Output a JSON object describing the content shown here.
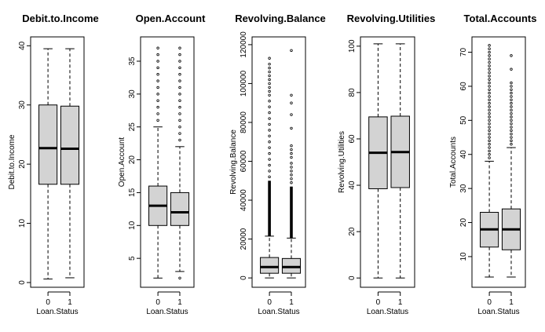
{
  "chart_data": [
    {
      "type": "box",
      "title": "Debit.to.Income",
      "xlabel": "Loan.Status",
      "ylabel": "Debit.to.Income",
      "categories": [
        "0",
        "1"
      ],
      "yticks": [
        0,
        10,
        20,
        30,
        40
      ],
      "ylim": [
        -0.8,
        41.5
      ],
      "boxes": [
        {
          "group": "0",
          "whisker_low": 0.6,
          "q1": 16.6,
          "median": 22.7,
          "q3": 30.0,
          "whisker_high": 39.5,
          "outliers": []
        },
        {
          "group": "1",
          "whisker_low": 0.8,
          "q1": 16.6,
          "median": 22.6,
          "q3": 29.8,
          "whisker_high": 39.5,
          "outliers": []
        }
      ]
    },
    {
      "type": "box",
      "title": "Open.Account",
      "xlabel": "Loan.Status",
      "ylabel": "Open.Account",
      "categories": [
        "0",
        "1"
      ],
      "yticks": [
        5,
        10,
        15,
        20,
        25,
        30,
        35
      ],
      "ylim": [
        0.6,
        38.7
      ],
      "boxes": [
        {
          "group": "0",
          "whisker_low": 2,
          "q1": 10,
          "median": 13,
          "q3": 16,
          "whisker_high": 25,
          "outliers": [
            26,
            27,
            28,
            29,
            30,
            31,
            32,
            33,
            34,
            35,
            36,
            37
          ]
        },
        {
          "group": "1",
          "whisker_low": 3,
          "q1": 10,
          "median": 12,
          "q3": 15,
          "whisker_high": 22,
          "outliers": [
            2,
            23,
            24,
            25,
            26,
            27,
            28,
            29,
            30,
            31,
            32,
            33,
            34,
            35,
            36,
            37
          ]
        }
      ]
    },
    {
      "type": "box",
      "title": "Revolving.Balance",
      "xlabel": "Loan.Status",
      "ylabel": "Revolving.Balance",
      "categories": [
        "0",
        "1"
      ],
      "yticks": [
        0,
        20000,
        40000,
        60000,
        80000,
        100000,
        120000
      ],
      "ylim": [
        -4800,
        124000
      ],
      "boxes": [
        {
          "group": "0",
          "whisker_low": 0,
          "q1": 2400,
          "median": 5600,
          "q3": 10500,
          "whisker_high": 21500,
          "outliers_dense": [
            21500,
            50000
          ],
          "outliers": [
            52000,
            55000,
            58000,
            61000,
            64000,
            67000,
            70000,
            73000,
            76000,
            79000,
            82000,
            85000,
            88000,
            91000,
            94000,
            96000,
            98000,
            100000,
            102000,
            104000,
            106000,
            108000,
            110000,
            113000
          ]
        },
        {
          "group": "1",
          "whisker_low": 0,
          "q1": 2400,
          "median": 5600,
          "q3": 10000,
          "whisker_high": 20500,
          "outliers_dense": [
            20500,
            47000
          ],
          "outliers": [
            49000,
            51000,
            53000,
            55000,
            57000,
            59000,
            62000,
            64000,
            66000,
            68000,
            77000,
            84000,
            90000,
            94000,
            117000
          ]
        }
      ]
    },
    {
      "type": "box",
      "title": "Revolving.Utilities",
      "xlabel": "Loan.Status",
      "ylabel": "Revolving.Utilities",
      "categories": [
        "0",
        "1"
      ],
      "yticks": [
        0,
        20,
        40,
        60,
        80,
        100
      ],
      "ylim": [
        -4,
        104
      ],
      "boxes": [
        {
          "group": "0",
          "whisker_low": 0,
          "q1": 38.5,
          "median": 54,
          "q3": 69.5,
          "whisker_high": 101,
          "outliers": []
        },
        {
          "group": "1",
          "whisker_low": 0,
          "q1": 39,
          "median": 54.3,
          "q3": 69.8,
          "whisker_high": 101,
          "outliers": []
        }
      ]
    },
    {
      "type": "box",
      "title": "Total.Accounts",
      "xlabel": "Loan.Status",
      "ylabel": "Total.Accounts",
      "categories": [
        "0",
        "1"
      ],
      "yticks": [
        10,
        20,
        30,
        40,
        50,
        60,
        70
      ],
      "ylim": [
        1,
        74.5
      ],
      "boxes": [
        {
          "group": "0",
          "whisker_low": 4,
          "q1": 12.8,
          "median": 18,
          "q3": 23,
          "whisker_high": 38,
          "outliers": [
            39,
            40,
            41,
            42,
            43,
            44,
            45,
            46,
            47,
            48,
            49,
            50,
            51,
            52,
            53,
            54,
            55,
            56,
            57,
            58,
            59,
            60,
            61,
            62,
            63,
            64,
            65,
            66,
            67,
            68,
            69,
            70,
            71,
            72
          ]
        },
        {
          "group": "1",
          "whisker_low": 4,
          "q1": 12,
          "median": 18,
          "q3": 24,
          "whisker_high": 42,
          "outliers": [
            43,
            44,
            45,
            46,
            47,
            48,
            49,
            50,
            51,
            52,
            53,
            54,
            55,
            56,
            57,
            58,
            59,
            60,
            61,
            65,
            69
          ]
        }
      ]
    }
  ],
  "style": {
    "box_fill": "#d3d3d3",
    "line_color": "#000000",
    "background": "#ffffff"
  }
}
